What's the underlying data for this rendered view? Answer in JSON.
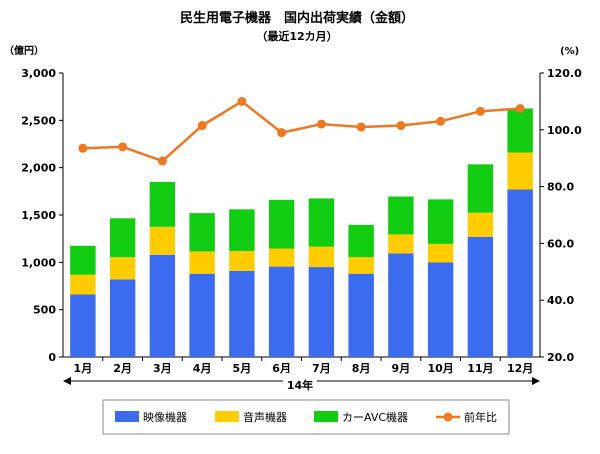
{
  "chart_data": {
    "type": "bar",
    "title": "民生用電子機器　国内出荷実績（金額）",
    "subtitle": "（最近12カ月）",
    "left_unit": "（億円）",
    "right_unit": "(%)",
    "xlabel": "14年",
    "categories": [
      "1月",
      "2月",
      "3月",
      "4月",
      "5月",
      "6月",
      "7月",
      "8月",
      "9月",
      "10月",
      "11月",
      "12月"
    ],
    "y_left_lim": [
      0,
      3000
    ],
    "y_left_ticks": [
      "0",
      "500",
      "1,000",
      "1,500",
      "2,000",
      "2,500",
      "3,000"
    ],
    "y_right_lim": [
      20,
      120
    ],
    "y_right_ticks": [
      "20.0",
      "40.0",
      "60.0",
      "80.0",
      "100.0",
      "120.0"
    ],
    "stacked": true,
    "series": [
      {
        "name": "映像機器",
        "axis": "left",
        "color": "#3b6cf0",
        "values": [
          660,
          820,
          1080,
          880,
          910,
          955,
          950,
          880,
          1095,
          1000,
          1270,
          1770
        ]
      },
      {
        "name": "音声機器",
        "axis": "left",
        "color": "#ffcc00",
        "values": [
          210,
          235,
          295,
          235,
          210,
          190,
          215,
          175,
          200,
          195,
          255,
          390
        ]
      },
      {
        "name": "カーAVC機器",
        "axis": "left",
        "color": "#11cc11",
        "values": [
          305,
          410,
          475,
          405,
          440,
          515,
          510,
          340,
          400,
          470,
          510,
          465
        ]
      },
      {
        "name": "前年比",
        "type": "line",
        "axis": "right",
        "color": "#f07820",
        "values": [
          93.5,
          94,
          89,
          101.5,
          110,
          99,
          102,
          101,
          101.5,
          103,
          106.5,
          107.5
        ]
      }
    ],
    "legend_position": "bottom",
    "grid": false
  }
}
